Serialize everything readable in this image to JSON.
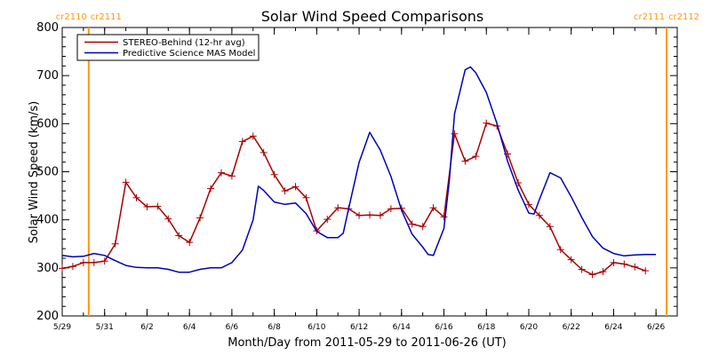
{
  "chart_data": {
    "type": "line",
    "title": "Solar Wind Speed Comparisons",
    "xlabel": "Month/Day from 2011-05-29 to 2011-06-26 (UT)",
    "ylabel": "Solar Wind Speed (km/s)",
    "xlim": [
      "2011-05-29",
      "2011-06-27"
    ],
    "ylim": [
      200,
      800
    ],
    "y_ticks": [
      200,
      300,
      400,
      500,
      600,
      700,
      800
    ],
    "x_ticks": [
      {
        "date": "2011-05-29",
        "label": "5/29"
      },
      {
        "date": "2011-05-31",
        "label": "5/31"
      },
      {
        "date": "2011-06-02",
        "label": "6/2"
      },
      {
        "date": "2011-06-04",
        "label": "6/4"
      },
      {
        "date": "2011-06-06",
        "label": "6/6"
      },
      {
        "date": "2011-06-08",
        "label": "6/8"
      },
      {
        "date": "2011-06-10",
        "label": "6/10"
      },
      {
        "date": "2011-06-12",
        "label": "6/12"
      },
      {
        "date": "2011-06-14",
        "label": "6/14"
      },
      {
        "date": "2011-06-16",
        "label": "6/16"
      },
      {
        "date": "2011-06-18",
        "label": "6/18"
      },
      {
        "date": "2011-06-20",
        "label": "6/20"
      },
      {
        "date": "2011-06-22",
        "label": "6/22"
      },
      {
        "date": "2011-06-24",
        "label": "6/24"
      },
      {
        "date": "2011-06-26",
        "label": "6/26"
      }
    ],
    "legend_position": "top-left",
    "grid": false,
    "rotation_markers": [
      {
        "date": "2011-05-30 06:00",
        "left_label": "cr2110",
        "right_label": "cr2111",
        "color": "#ff9900"
      },
      {
        "date": "2011-06-26 12:00",
        "left_label": "cr2111",
        "right_label": "cr2112",
        "color": "#ff9900"
      }
    ],
    "series": [
      {
        "name": "STEREO-Behind (12-hr avg)",
        "color": "#aa0000",
        "marker": "plus",
        "points": [
          [
            "2011-05-29 00:00",
            299
          ],
          [
            "2011-05-29 12:00",
            303
          ],
          [
            "2011-05-30 00:00",
            311
          ],
          [
            "2011-05-30 12:00",
            311
          ],
          [
            "2011-05-31 00:00",
            314
          ],
          [
            "2011-05-31 12:00",
            350
          ],
          [
            "2011-06-01 00:00",
            478
          ],
          [
            "2011-06-01 12:00",
            446
          ],
          [
            "2011-06-02 00:00",
            427
          ],
          [
            "2011-06-02 12:00",
            428
          ],
          [
            "2011-06-03 00:00",
            402
          ],
          [
            "2011-06-03 12:00",
            367
          ],
          [
            "2011-06-04 00:00",
            353
          ],
          [
            "2011-06-04 12:00",
            404
          ],
          [
            "2011-06-05 00:00",
            465
          ],
          [
            "2011-06-05 12:00",
            498
          ],
          [
            "2011-06-06 00:00",
            491
          ],
          [
            "2011-06-06 12:00",
            563
          ],
          [
            "2011-06-07 00:00",
            574
          ],
          [
            "2011-06-07 12:00",
            540
          ],
          [
            "2011-06-08 00:00",
            494
          ],
          [
            "2011-06-08 12:00",
            460
          ],
          [
            "2011-06-09 00:00",
            469
          ],
          [
            "2011-06-09 12:00",
            446
          ],
          [
            "2011-06-10 00:00",
            377
          ],
          [
            "2011-06-10 12:00",
            401
          ],
          [
            "2011-06-11 00:00",
            425
          ],
          [
            "2011-06-11 12:00",
            423
          ],
          [
            "2011-06-12 00:00",
            409
          ],
          [
            "2011-06-12 12:00",
            410
          ],
          [
            "2011-06-13 00:00",
            409
          ],
          [
            "2011-06-13 12:00",
            423
          ],
          [
            "2011-06-14 00:00",
            424
          ],
          [
            "2011-06-14 12:00",
            391
          ],
          [
            "2011-06-15 00:00",
            386
          ],
          [
            "2011-06-15 12:00",
            425
          ],
          [
            "2011-06-16 00:00",
            406
          ],
          [
            "2011-06-16 12:00",
            579
          ],
          [
            "2011-06-17 00:00",
            522
          ],
          [
            "2011-06-17 12:00",
            532
          ],
          [
            "2011-06-18 00:00",
            601
          ],
          [
            "2011-06-18 12:00",
            595
          ],
          [
            "2011-06-19 00:00",
            537
          ],
          [
            "2011-06-19 12:00",
            477
          ],
          [
            "2011-06-20 00:00",
            432
          ],
          [
            "2011-06-20 12:00",
            409
          ],
          [
            "2011-06-21 00:00",
            386
          ],
          [
            "2011-06-21 12:00",
            338
          ],
          [
            "2011-06-22 00:00",
            317
          ],
          [
            "2011-06-22 12:00",
            297
          ],
          [
            "2011-06-23 00:00",
            286
          ],
          [
            "2011-06-23 12:00",
            292
          ],
          [
            "2011-06-24 00:00",
            311
          ],
          [
            "2011-06-24 12:00",
            308
          ],
          [
            "2011-06-25 00:00",
            302
          ],
          [
            "2011-06-25 12:00",
            294
          ]
        ]
      },
      {
        "name": "Predictive Science MAS Model",
        "color": "#0000bb",
        "marker": "none",
        "points": [
          [
            "2011-05-29 00:00",
            326
          ],
          [
            "2011-05-29 12:00",
            323
          ],
          [
            "2011-05-30 00:00",
            324
          ],
          [
            "2011-05-30 12:00",
            330
          ],
          [
            "2011-05-31 00:00",
            326
          ],
          [
            "2011-05-31 12:00",
            315
          ],
          [
            "2011-06-01 00:00",
            305
          ],
          [
            "2011-06-01 12:00",
            301
          ],
          [
            "2011-06-02 00:00",
            300
          ],
          [
            "2011-06-02 12:00",
            300
          ],
          [
            "2011-06-03 00:00",
            297
          ],
          [
            "2011-06-03 12:00",
            291
          ],
          [
            "2011-06-04 00:00",
            291
          ],
          [
            "2011-06-04 12:00",
            297
          ],
          [
            "2011-06-05 00:00",
            300
          ],
          [
            "2011-06-05 12:00",
            300
          ],
          [
            "2011-06-06 00:00",
            311
          ],
          [
            "2011-06-06 12:00",
            337
          ],
          [
            "2011-06-07 00:00",
            400
          ],
          [
            "2011-06-07 06:00",
            470
          ],
          [
            "2011-06-07 12:00",
            461
          ],
          [
            "2011-06-08 00:00",
            437
          ],
          [
            "2011-06-08 12:00",
            432
          ],
          [
            "2011-06-09 00:00",
            435
          ],
          [
            "2011-06-09 12:00",
            413
          ],
          [
            "2011-06-10 00:00",
            376
          ],
          [
            "2011-06-10 12:00",
            363
          ],
          [
            "2011-06-11 00:00",
            363
          ],
          [
            "2011-06-11 06:00",
            372
          ],
          [
            "2011-06-11 12:00",
            422
          ],
          [
            "2011-06-12 00:00",
            520
          ],
          [
            "2011-06-12 12:00",
            582
          ],
          [
            "2011-06-13 00:00",
            545
          ],
          [
            "2011-06-13 12:00",
            490
          ],
          [
            "2011-06-14 00:00",
            420
          ],
          [
            "2011-06-14 12:00",
            370
          ],
          [
            "2011-06-15 00:00",
            343
          ],
          [
            "2011-06-15 06:00",
            328
          ],
          [
            "2011-06-15 12:00",
            326
          ],
          [
            "2011-06-16 00:00",
            382
          ],
          [
            "2011-06-16 06:00",
            480
          ],
          [
            "2011-06-16 12:00",
            620
          ],
          [
            "2011-06-17 00:00",
            712
          ],
          [
            "2011-06-17 06:00",
            718
          ],
          [
            "2011-06-17 12:00",
            706
          ],
          [
            "2011-06-18 00:00",
            665
          ],
          [
            "2011-06-18 12:00",
            600
          ],
          [
            "2011-06-19 00:00",
            522
          ],
          [
            "2011-06-19 12:00",
            462
          ],
          [
            "2011-06-20 00:00",
            414
          ],
          [
            "2011-06-20 06:00",
            412
          ],
          [
            "2011-06-20 12:00",
            442
          ],
          [
            "2011-06-21 00:00",
            498
          ],
          [
            "2011-06-21 12:00",
            487
          ],
          [
            "2011-06-22 00:00",
            448
          ],
          [
            "2011-06-22 12:00",
            405
          ],
          [
            "2011-06-23 00:00",
            365
          ],
          [
            "2011-06-23 12:00",
            341
          ],
          [
            "2011-06-24 00:00",
            330
          ],
          [
            "2011-06-24 12:00",
            325
          ],
          [
            "2011-06-25 00:00",
            327
          ],
          [
            "2011-06-25 12:00",
            328
          ],
          [
            "2011-06-26 00:00",
            328
          ]
        ]
      }
    ]
  }
}
